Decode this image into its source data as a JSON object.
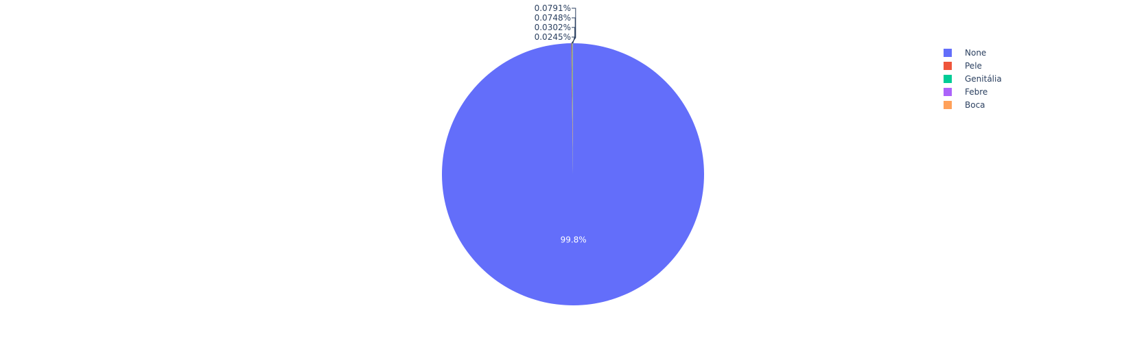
{
  "chart_data": {
    "type": "pie",
    "title": "",
    "direction": "clockwise",
    "rotation_deg": 0,
    "sort": "descending",
    "slices": [
      {
        "label": "None",
        "percent": 99.8,
        "percent_text": "99.8%",
        "color": "#636efa"
      },
      {
        "label": "Pele",
        "percent": 0.0791,
        "percent_text": "0.0791%",
        "color": "#EF553B"
      },
      {
        "label": "Genitália",
        "percent": 0.0748,
        "percent_text": "0.0748%",
        "color": "#00cc96"
      },
      {
        "label": "Febre",
        "percent": 0.0302,
        "percent_text": "0.0302%",
        "color": "#ab63fa"
      },
      {
        "label": "Boca",
        "percent": 0.0245,
        "percent_text": "0.0245%",
        "color": "#FFA15A"
      }
    ],
    "legend": {
      "position": "top-right",
      "items": [
        "None",
        "Pele",
        "Genitália",
        "Febre",
        "Boca"
      ]
    },
    "text_color_outside": "#2a3f5f",
    "text_color_inside": "#ffffff"
  }
}
